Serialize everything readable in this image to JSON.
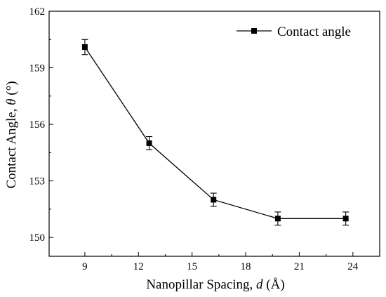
{
  "chart_data": {
    "type": "line",
    "xlabel": "Nanopillar Spacing, d (Å)",
    "xlabel_parts": {
      "pre": "Nanopillar Spacing, ",
      "sym": "d",
      "post": " (Å)"
    },
    "ylabel": "Contact Angle, θ (°)",
    "ylabel_parts": {
      "pre": "Contact Angle, ",
      "sym": "θ",
      "post": " (°)"
    },
    "xlim": [
      7,
      25.5
    ],
    "ylim": [
      149,
      162
    ],
    "xticks": [
      9,
      12,
      15,
      18,
      21,
      24
    ],
    "yticks": [
      150,
      153,
      156,
      159,
      162
    ],
    "legend_position": "top-right",
    "grid": false,
    "series": [
      {
        "name": "Contact angle",
        "color": "#000000",
        "marker": "square",
        "x": [
          9,
          12.6,
          16.2,
          19.8,
          23.6
        ],
        "y": [
          160.1,
          155.0,
          152.0,
          151.0,
          151.0
        ],
        "yerr": [
          0.4,
          0.35,
          0.35,
          0.35,
          0.35
        ]
      }
    ]
  }
}
